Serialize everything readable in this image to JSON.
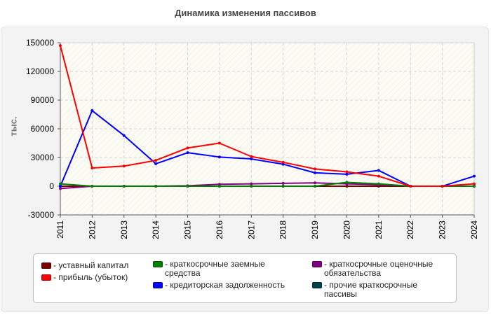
{
  "chart_data": {
    "type": "line",
    "title": "Динамика изменения пассивов",
    "ylabel": "тыс.",
    "xlabel": "",
    "ylim": [
      -30000,
      150000
    ],
    "yticks": [
      150000,
      120000,
      90000,
      60000,
      30000,
      0,
      -30000
    ],
    "ytick_labels": [
      "150000",
      "120000",
      "90000",
      "60000",
      "30000",
      "0",
      "-30000"
    ],
    "categories": [
      "2011",
      "2012",
      "2013",
      "2014",
      "2015",
      "2016",
      "2017",
      "2018",
      "2019",
      "2020",
      "2021",
      "2022",
      "2023",
      "2024"
    ],
    "grid": true,
    "series": [
      {
        "name": "уставный капитал",
        "color": "#7a0000",
        "values": [
          10,
          10,
          10,
          10,
          10,
          10,
          10,
          10,
          10,
          10,
          10,
          10,
          10,
          10
        ]
      },
      {
        "name": "прибыль (убыток)",
        "color": "#ff0000",
        "values": [
          147000,
          19000,
          21000,
          27000,
          40000,
          45000,
          31000,
          25000,
          18000,
          15000,
          10500,
          0,
          0,
          2500
        ]
      },
      {
        "name": "краткосрочные заемные средства",
        "color": "#008000",
        "values": [
          2500,
          0,
          0,
          0,
          0,
          0,
          0,
          0,
          0,
          4000,
          2500,
          0,
          0,
          0
        ]
      },
      {
        "name": "кредиторская задолженность",
        "color": "#0000ff",
        "values": [
          0,
          79000,
          53000,
          23500,
          35000,
          30500,
          28500,
          23000,
          14000,
          12500,
          16500,
          0,
          0,
          10500
        ]
      },
      {
        "name": "краткосрочные оценочные обязательства",
        "color": "#800080",
        "values": [
          -2500,
          0,
          0,
          0,
          500,
          2000,
          2500,
          3000,
          3500,
          2500,
          1500,
          0,
          0,
          0
        ]
      },
      {
        "name": "прочие краткосрочные пассивы",
        "color": "#004444",
        "values": [
          0,
          0,
          0,
          0,
          0,
          0,
          0,
          0,
          0,
          0,
          0,
          0,
          0,
          0
        ]
      }
    ]
  },
  "legend": {
    "items": [
      {
        "label": "- уставный капитал",
        "color": "#7a0000"
      },
      {
        "label": "- прибыль (убыток)",
        "color": "#ff0000"
      },
      {
        "label": "- краткосрочные заемные средства",
        "color": "#008000"
      },
      {
        "label": "- кредиторская задолженность",
        "color": "#0000ff"
      },
      {
        "label": "- краткосрочные оценочные обязательства",
        "color": "#800080"
      },
      {
        "label": "- прочие краткосрочные пассивы",
        "color": "#004444"
      }
    ]
  }
}
